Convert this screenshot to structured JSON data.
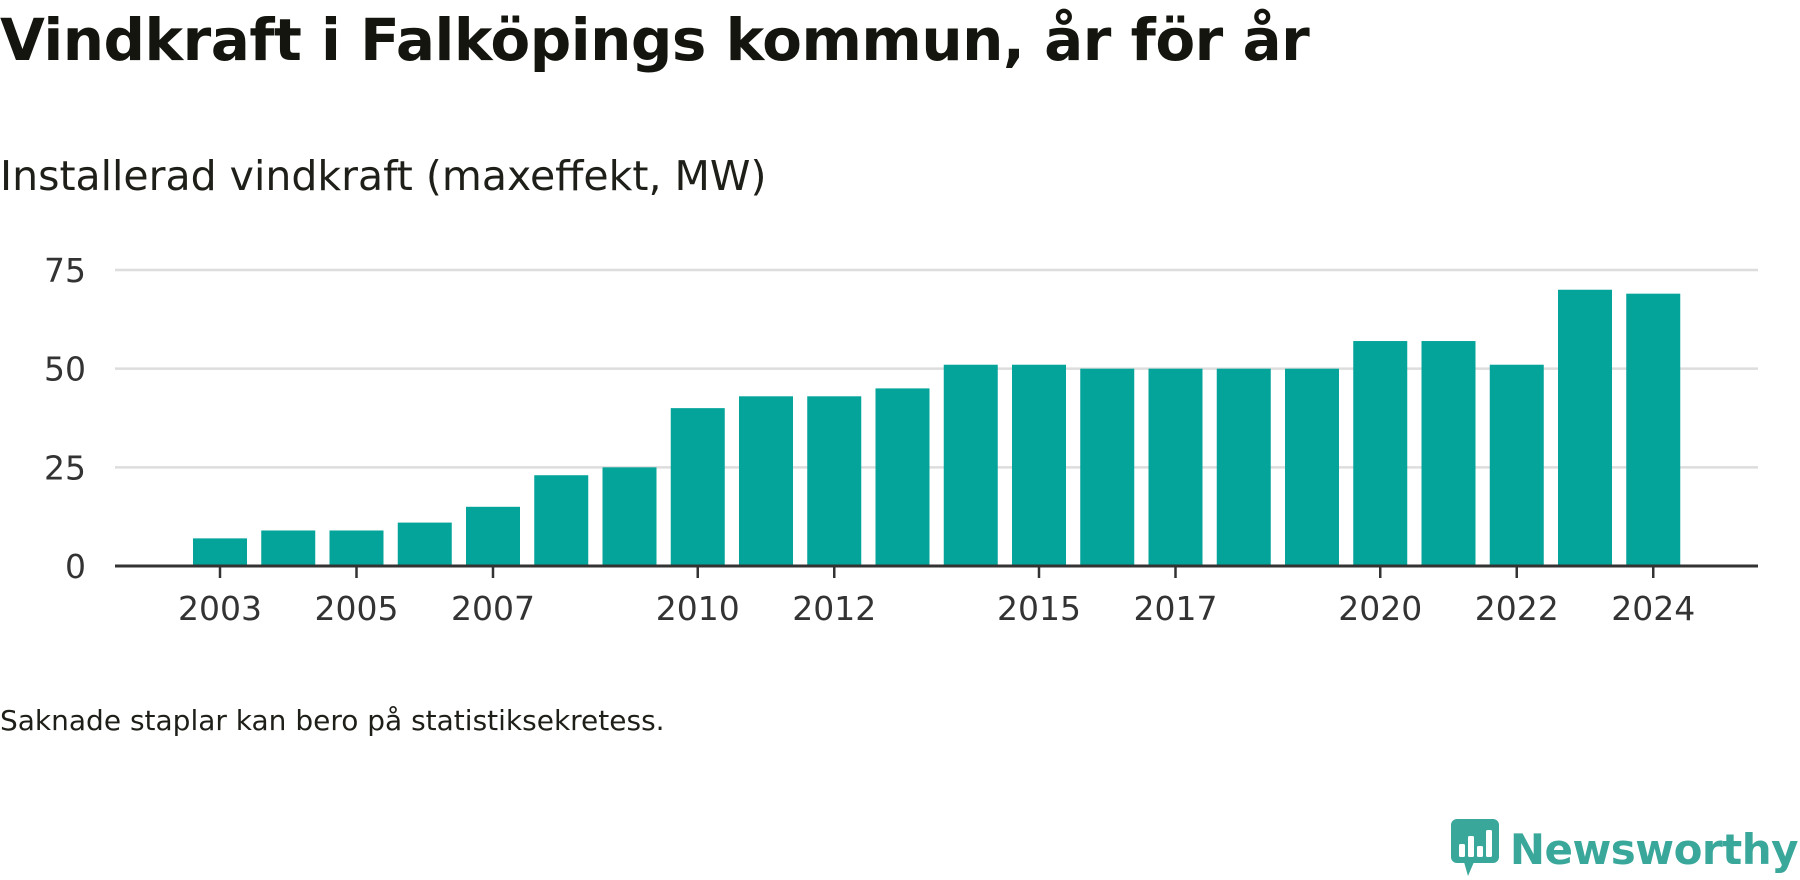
{
  "title": "Vindkraft i Falköpings kommun, år för år",
  "subtitle": "Installerad vindkraft (maxeffekt, MW)",
  "footnote": "Saknade staplar kan bero på statistiksekretess.",
  "brand": {
    "name": "Newsworthy",
    "icon": "newsworthy-logo-icon",
    "color": "#3aa79b"
  },
  "chart_data": {
    "type": "bar",
    "title": "Vindkraft i Falköpings kommun, år för år",
    "subtitle": "Installerad vindkraft (maxeffekt, MW)",
    "xlabel": "",
    "ylabel": "",
    "categories": [
      "2003",
      "2004",
      "2005",
      "2006",
      "2007",
      "2008",
      "2009",
      "2010",
      "2011",
      "2012",
      "2013",
      "2014",
      "2015",
      "2016",
      "2017",
      "2018",
      "2019",
      "2020",
      "2021",
      "2022",
      "2023",
      "2024"
    ],
    "x_tick_labels": [
      "2003",
      "2005",
      "2007",
      "2010",
      "2012",
      "2015",
      "2017",
      "2020",
      "2022",
      "2024"
    ],
    "series": [
      {
        "values": [
          7,
          9,
          9,
          11,
          15,
          23,
          25,
          40,
          43,
          43,
          45,
          51,
          51,
          50,
          50,
          50,
          50,
          57,
          57,
          51,
          70,
          69
        ]
      }
    ],
    "ylim": [
      0,
      75
    ],
    "y_ticks": [
      0,
      25,
      50,
      75
    ],
    "grid": true,
    "bar_color": "#04a49a",
    "grid_color": "#dddddd",
    "axis_color": "#333333"
  }
}
